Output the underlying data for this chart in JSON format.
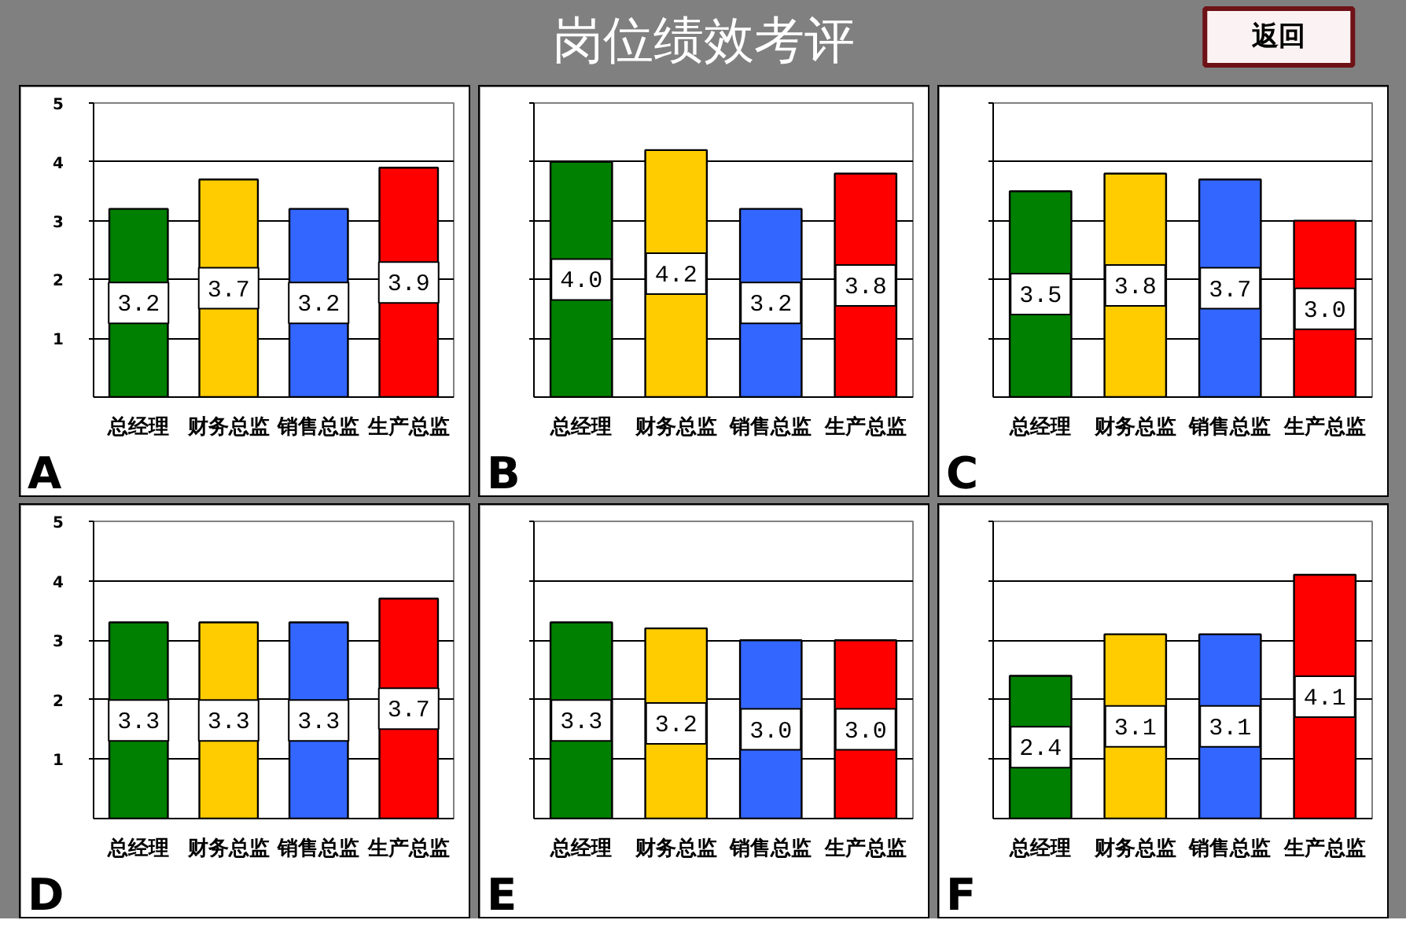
{
  "chart_data": [
    {
      "type": "other",
      "title": "岗位绩效考评",
      "annotations": [
        "返回"
      ]
    },
    {
      "type": "bar",
      "title": "A",
      "categories": [
        "总经理",
        "财务总监",
        "销售总监",
        "生产总监"
      ],
      "values": [
        3.2,
        3.7,
        3.2,
        3.9
      ],
      "value_labels": [
        "3.2",
        "3.7",
        "3.2",
        "3.9"
      ],
      "colors": [
        "#008000",
        "#ffcc00",
        "#3366ff",
        "#ff0000"
      ],
      "ylim": [
        0,
        5
      ],
      "yticks": [
        1,
        2,
        3,
        4,
        5
      ],
      "grid": "y"
    },
    {
      "type": "bar",
      "title": "B",
      "categories": [
        "总经理",
        "财务总监",
        "销售总监",
        "生产总监"
      ],
      "values": [
        4.0,
        4.2,
        3.2,
        3.8
      ],
      "value_labels": [
        "4.0",
        "4.2",
        "3.2",
        "3.8"
      ],
      "colors": [
        "#008000",
        "#ffcc00",
        "#3366ff",
        "#ff0000"
      ],
      "ylim": [
        0,
        5
      ],
      "yticks": [
        1,
        2,
        3,
        4,
        5
      ],
      "grid": "y",
      "tick_labels": "x"
    },
    {
      "type": "bar",
      "title": "C",
      "categories": [
        "总经理",
        "财务总监",
        "销售总监",
        "生产总监"
      ],
      "values": [
        3.5,
        3.8,
        3.7,
        3.0
      ],
      "value_labels": [
        "3.5",
        "3.8",
        "3.7",
        "3.0"
      ],
      "colors": [
        "#008000",
        "#ffcc00",
        "#3366ff",
        "#ff0000"
      ],
      "ylim": [
        0,
        5
      ],
      "yticks": [
        1,
        2,
        3,
        4,
        5
      ],
      "grid": "y",
      "tick_labels": "x"
    },
    {
      "type": "bar",
      "title": "D",
      "categories": [
        "总经理",
        "财务总监",
        "销售总监",
        "生产总监"
      ],
      "values": [
        3.3,
        3.3,
        3.3,
        3.7
      ],
      "value_labels": [
        "3.3",
        "3.3",
        "3.3",
        "3.7"
      ],
      "colors": [
        "#008000",
        "#ffcc00",
        "#3366ff",
        "#ff0000"
      ],
      "ylim": [
        0,
        5
      ],
      "yticks": [
        1,
        2,
        3,
        4,
        5
      ],
      "grid": "y"
    },
    {
      "type": "bar",
      "title": "E",
      "categories": [
        "总经理",
        "财务总监",
        "销售总监",
        "生产总监"
      ],
      "values": [
        3.3,
        3.2,
        3.0,
        3.0
      ],
      "value_labels": [
        "3.3",
        "3.2",
        "3.0",
        "3.0"
      ],
      "colors": [
        "#008000",
        "#ffcc00",
        "#3366ff",
        "#ff0000"
      ],
      "ylim": [
        0,
        5
      ],
      "yticks": [
        1,
        2,
        3,
        4,
        5
      ],
      "grid": "y",
      "tick_labels": "x"
    },
    {
      "type": "bar",
      "title": "F",
      "categories": [
        "总经理",
        "财务总监",
        "销售总监",
        "生产总监"
      ],
      "values": [
        2.4,
        3.1,
        3.1,
        4.1
      ],
      "value_labels": [
        "2.4",
        "3.1",
        "3.1",
        "4.1"
      ],
      "colors": [
        "#008000",
        "#ffcc00",
        "#3366ff",
        "#ff0000"
      ],
      "ylim": [
        0,
        5
      ],
      "yticks": [
        1,
        2,
        3,
        4,
        5
      ],
      "grid": "y",
      "tick_labels": "x"
    }
  ]
}
